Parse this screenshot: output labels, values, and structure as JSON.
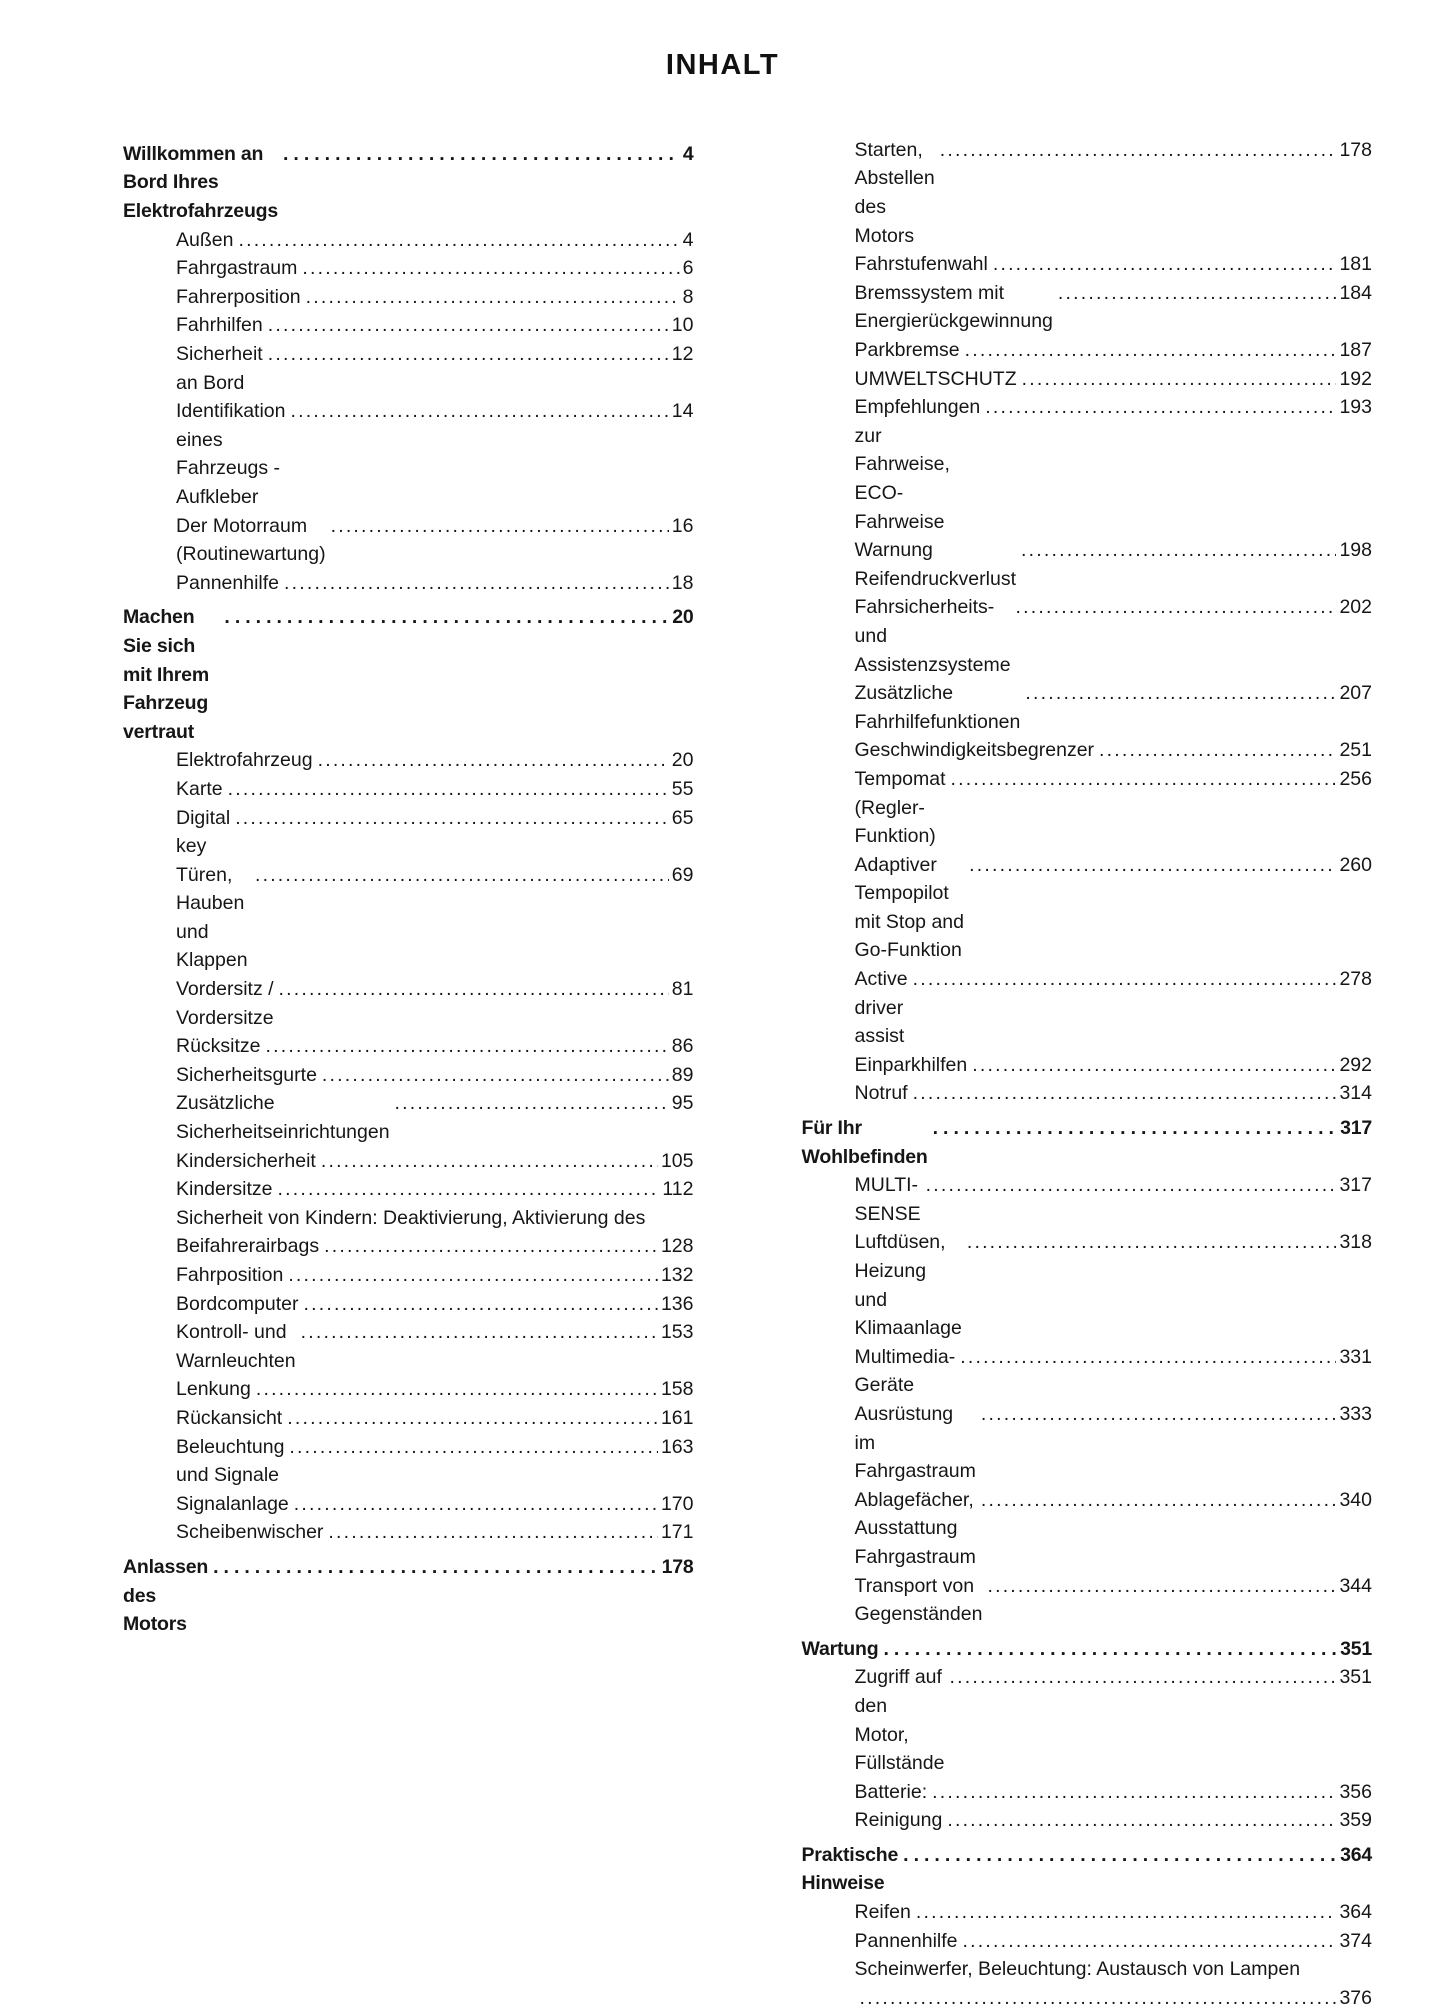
{
  "page_title": "INHALT",
  "colors": {
    "text": "#161616",
    "background": "#ffffff"
  },
  "toc": {
    "columns": [
      {
        "entries": [
          {
            "level": 1,
            "label": "Willkommen an Bord Ihres Elektrofahrzeugs",
            "page": "4"
          },
          {
            "level": 2,
            "label": "Außen",
            "page": "4"
          },
          {
            "level": 2,
            "label": "Fahrgastraum",
            "page": "6"
          },
          {
            "level": 2,
            "label": "Fahrerposition",
            "page": "8"
          },
          {
            "level": 2,
            "label": "Fahrhilfen",
            "page": "10"
          },
          {
            "level": 2,
            "label": "Sicherheit an Bord",
            "page": "12"
          },
          {
            "level": 2,
            "label": "Identifikation eines Fahrzeugs - Aufkleber",
            "page": "14"
          },
          {
            "level": 2,
            "label": "Der Motorraum (Routinewartung)",
            "page": "16"
          },
          {
            "level": 2,
            "label": "Pannenhilfe",
            "page": "18"
          },
          {
            "level": 1,
            "label": "Machen Sie sich mit Ihrem Fahrzeug vertraut",
            "page": "20"
          },
          {
            "level": 2,
            "label": "Elektrofahrzeug",
            "page": "20"
          },
          {
            "level": 2,
            "label": "Karte",
            "page": "55"
          },
          {
            "level": 2,
            "label": "Digital key",
            "page": "65"
          },
          {
            "level": 2,
            "label": "Türen, Hauben und Klappen",
            "page": "69"
          },
          {
            "level": 2,
            "label": "Vordersitz / Vordersitze",
            "page": "81"
          },
          {
            "level": 2,
            "label": "Rücksitze",
            "page": "86"
          },
          {
            "level": 2,
            "label": "Sicherheitsgurte",
            "page": "89"
          },
          {
            "level": 2,
            "label": "Zusätzliche Sicherheitseinrichtungen",
            "page": "95"
          },
          {
            "level": 2,
            "label": "Kindersicherheit",
            "page": "105"
          },
          {
            "level": 2,
            "label": "Kindersitze",
            "page": "112"
          },
          {
            "level": 2,
            "label": "Sicherheit von Kindern: Deaktivierung, Aktivierung des",
            "label_cont": "Beifahrerairbags",
            "page": "128"
          },
          {
            "level": 2,
            "label": "Fahrposition",
            "page": "132"
          },
          {
            "level": 2,
            "label": "Bordcomputer",
            "page": "136"
          },
          {
            "level": 2,
            "label": "Kontroll- und Warnleuchten",
            "page": "153"
          },
          {
            "level": 2,
            "label": "Lenkung",
            "page": "158"
          },
          {
            "level": 2,
            "label": "Rückansicht",
            "page": "161"
          },
          {
            "level": 2,
            "label": "Beleuchtung und Signale",
            "page": "163"
          },
          {
            "level": 2,
            "label": "Signalanlage",
            "page": "170"
          },
          {
            "level": 2,
            "label": "Scheibenwischer",
            "page": "171"
          },
          {
            "level": 1,
            "label": "Anlassen des Motors",
            "page": "178"
          }
        ]
      },
      {
        "entries": [
          {
            "level": 2,
            "label": "Starten, Abstellen des Motors",
            "page": "178"
          },
          {
            "level": 2,
            "label": "Fahrstufenwahl",
            "page": "181"
          },
          {
            "level": 2,
            "label": "Bremssystem mit Energierückgewinnung",
            "page": "184"
          },
          {
            "level": 2,
            "label": "Parkbremse",
            "page": "187"
          },
          {
            "level": 2,
            "label": "UMWELTSCHUTZ",
            "page": "192"
          },
          {
            "level": 2,
            "label": "Empfehlungen zur Fahrweise, ECO-Fahrweise",
            "page": "193"
          },
          {
            "level": 2,
            "label": "Warnung Reifendruckverlust",
            "page": "198"
          },
          {
            "level": 2,
            "label": "Fahrsicherheits- und Assistenzsysteme",
            "page": "202"
          },
          {
            "level": 2,
            "label": "Zusätzliche Fahrhilfefunktionen",
            "page": "207"
          },
          {
            "level": 2,
            "label": "Geschwindigkeitsbegrenzer",
            "page": "251"
          },
          {
            "level": 2,
            "label": "Tempomat (Regler-Funktion)",
            "page": "256"
          },
          {
            "level": 2,
            "label": "Adaptiver Tempopilot mit Stop and Go-Funktion",
            "page": "260"
          },
          {
            "level": 2,
            "label": "Active driver assist",
            "page": "278"
          },
          {
            "level": 2,
            "label": "Einparkhilfen",
            "page": "292"
          },
          {
            "level": 2,
            "label": "Notruf",
            "page": "314"
          },
          {
            "level": 1,
            "label": "Für Ihr Wohlbefinden",
            "page": "317"
          },
          {
            "level": 2,
            "label": "MULTI-SENSE",
            "page": "317"
          },
          {
            "level": 2,
            "label": "Luftdüsen, Heizung und Klimaanlage",
            "page": "318"
          },
          {
            "level": 2,
            "label": "Multimedia-Geräte",
            "page": "331"
          },
          {
            "level": 2,
            "label": "Ausrüstung im Fahrgastraum",
            "page": "333"
          },
          {
            "level": 2,
            "label": "Ablagefächer, Ausstattung Fahrgastraum",
            "page": "340"
          },
          {
            "level": 2,
            "label": "Transport von Gegenständen",
            "page": "344"
          },
          {
            "level": 1,
            "label": "Wartung",
            "page": "351"
          },
          {
            "level": 2,
            "label": "Zugriff auf den Motor, Füllstände",
            "page": "351"
          },
          {
            "level": 2,
            "label": "Batterie:",
            "page": "356"
          },
          {
            "level": 2,
            "label": "Reinigung",
            "page": "359"
          },
          {
            "level": 1,
            "label": "Praktische Hinweise",
            "page": "364"
          },
          {
            "level": 2,
            "label": "Reifen",
            "page": "364"
          },
          {
            "level": 2,
            "label": "Pannenhilfe",
            "page": "374"
          },
          {
            "level": 2,
            "label": "Scheinwerfer, Beleuchtung: Austausch von Lampen",
            "label_cont": "",
            "page": "376"
          }
        ]
      }
    ]
  }
}
